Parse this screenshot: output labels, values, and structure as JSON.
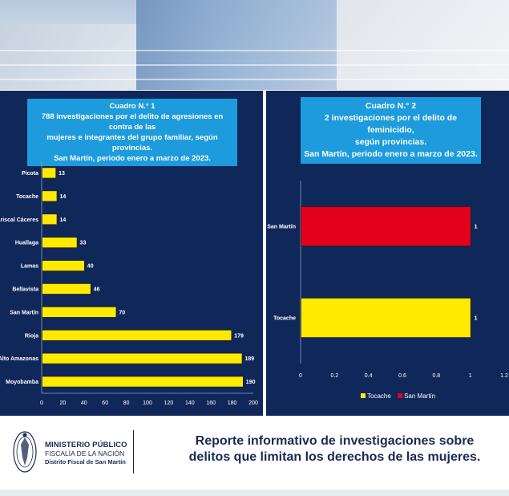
{
  "colors": {
    "panel_bg": "#10275a",
    "title_bg": "#1d9bdc",
    "bar_yellow": "#ffea00",
    "bar_red": "#e3001b",
    "text_dark": "#1b2a55"
  },
  "chart_data": [
    {
      "type": "bar",
      "orientation": "horizontal",
      "title_lines": [
        "Cuadro N.° 1",
        "788 investigaciones por el delito de agresiones en contra de las",
        "mujeres e integrantes del grupo familiar, según provincias.",
        "San Martín, periodo enero a marzo de 2023."
      ],
      "categories": [
        "Picota",
        "Tocache",
        "Mariscal Cáceres",
        "Huallaga",
        "Lamas",
        "Bellavista",
        "San Martín",
        "Rioja",
        "Alto Amazonas",
        "Moyobamba"
      ],
      "values": [
        13,
        14,
        14,
        33,
        40,
        46,
        70,
        179,
        189,
        190
      ],
      "xlim": [
        0,
        200
      ],
      "xticks": [
        "0",
        "20",
        "40",
        "60",
        "80",
        "100",
        "120",
        "140",
        "160",
        "180",
        "200"
      ],
      "grid": false
    },
    {
      "type": "bar",
      "orientation": "horizontal",
      "title_lines": [
        "Cuadro N.° 2",
        "2 investigaciones por el delito de feminicidio,",
        "según provincias.",
        "San Martín, periodo enero a marzo de 2023."
      ],
      "categories": [
        "San Martín",
        "Tocache"
      ],
      "values": [
        1,
        1
      ],
      "value_labels": [
        "1",
        "1"
      ],
      "bar_colors": [
        "#e3001b",
        "#ffea00"
      ],
      "xlim": [
        0,
        1.2
      ],
      "xticks": [
        "0",
        "0.2",
        "0.4",
        "0.6",
        "0.8",
        "1",
        "1.2"
      ],
      "legend": [
        {
          "label": "Tocache",
          "color": "#ffea00"
        },
        {
          "label": "San Martín",
          "color": "#e3001b"
        }
      ],
      "legend_position": "bottom",
      "grid": false
    }
  ],
  "footer": {
    "org_line1": "MINISTERIO PÚBLICO",
    "org_line2": "FISCALÍA DE LA NACIÓN",
    "org_line3": "Distrito Fiscal de San Martín",
    "report_line1": "Reporte informativo de investigaciones sobre",
    "report_line2": "delitos que limitan los derechos de las mujeres."
  }
}
